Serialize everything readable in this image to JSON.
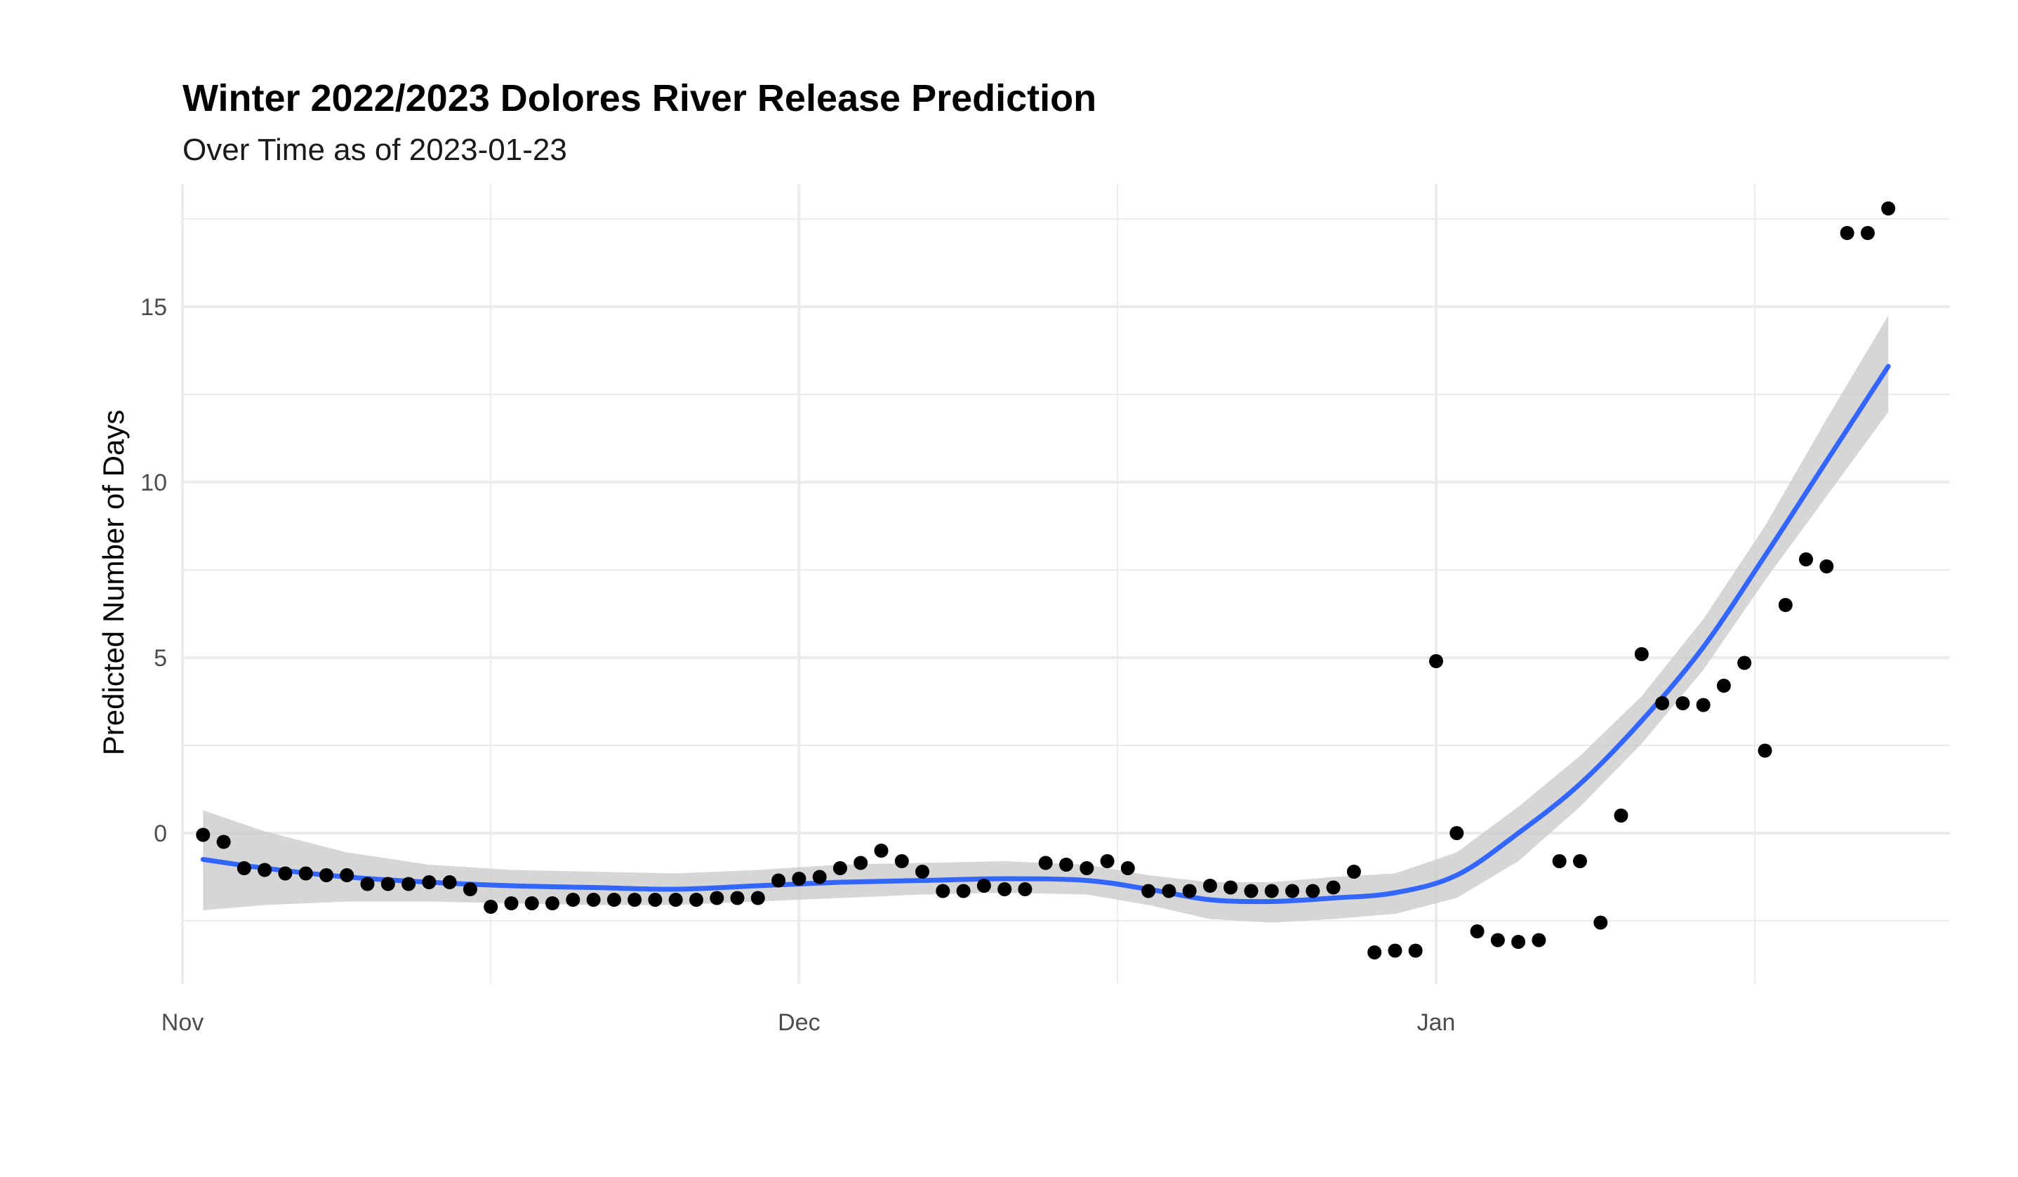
{
  "chart_data": {
    "type": "scatter",
    "title": "Winter 2022/2023 Dolores River Release Prediction",
    "subtitle": "Over Time as of 2023-01-23",
    "xlabel": "",
    "ylabel": "Predicted Number of Days",
    "xlim": [
      "2022-11-01",
      "2023-01-26"
    ],
    "ylim": [
      -4.3,
      18.5
    ],
    "x_ticks": [
      {
        "date": "2022-11-01",
        "label": "Nov"
      },
      {
        "date": "2022-12-01",
        "label": "Dec"
      },
      {
        "date": "2023-01-01",
        "label": "Jan"
      }
    ],
    "y_ticks": [
      0,
      5,
      10,
      15
    ],
    "grid": true,
    "legend": "none",
    "colors": {
      "points": "#000000",
      "trend": "#3366ff",
      "band": "#c8c8c8",
      "grid": "#ebebeb"
    },
    "series": [
      {
        "kind": "points",
        "points": [
          [
            "2022-11-02",
            -0.05
          ],
          [
            "2022-11-03",
            -0.25
          ],
          [
            "2022-11-04",
            -1.0
          ],
          [
            "2022-11-05",
            -1.05
          ],
          [
            "2022-11-06",
            -1.15
          ],
          [
            "2022-11-07",
            -1.15
          ],
          [
            "2022-11-08",
            -1.2
          ],
          [
            "2022-11-09",
            -1.2
          ],
          [
            "2022-11-10",
            -1.45
          ],
          [
            "2022-11-11",
            -1.45
          ],
          [
            "2022-11-12",
            -1.45
          ],
          [
            "2022-11-13",
            -1.4
          ],
          [
            "2022-11-14",
            -1.4
          ],
          [
            "2022-11-15",
            -1.6
          ],
          [
            "2022-11-16",
            -2.1
          ],
          [
            "2022-11-17",
            -2.0
          ],
          [
            "2022-11-18",
            -2.0
          ],
          [
            "2022-11-19",
            -2.0
          ],
          [
            "2022-11-20",
            -1.9
          ],
          [
            "2022-11-21",
            -1.9
          ],
          [
            "2022-11-22",
            -1.9
          ],
          [
            "2022-11-23",
            -1.9
          ],
          [
            "2022-11-24",
            -1.9
          ],
          [
            "2022-11-25",
            -1.9
          ],
          [
            "2022-11-26",
            -1.9
          ],
          [
            "2022-11-27",
            -1.85
          ],
          [
            "2022-11-28",
            -1.85
          ],
          [
            "2022-11-29",
            -1.85
          ],
          [
            "2022-11-30",
            -1.35
          ],
          [
            "2022-12-01",
            -1.3
          ],
          [
            "2022-12-02",
            -1.25
          ],
          [
            "2022-12-03",
            -1.0
          ],
          [
            "2022-12-04",
            -0.85
          ],
          [
            "2022-12-05",
            -0.5
          ],
          [
            "2022-12-06",
            -0.8
          ],
          [
            "2022-12-07",
            -1.1
          ],
          [
            "2022-12-08",
            -1.65
          ],
          [
            "2022-12-09",
            -1.65
          ],
          [
            "2022-12-10",
            -1.5
          ],
          [
            "2022-12-11",
            -1.6
          ],
          [
            "2022-12-12",
            -1.6
          ],
          [
            "2022-12-13",
            -0.85
          ],
          [
            "2022-12-14",
            -0.9
          ],
          [
            "2022-12-15",
            -1.0
          ],
          [
            "2022-12-16",
            -0.8
          ],
          [
            "2022-12-17",
            -1.0
          ],
          [
            "2022-12-18",
            -1.65
          ],
          [
            "2022-12-19",
            -1.65
          ],
          [
            "2022-12-20",
            -1.65
          ],
          [
            "2022-12-21",
            -1.5
          ],
          [
            "2022-12-22",
            -1.55
          ],
          [
            "2022-12-23",
            -1.65
          ],
          [
            "2022-12-24",
            -1.65
          ],
          [
            "2022-12-25",
            -1.65
          ],
          [
            "2022-12-26",
            -1.65
          ],
          [
            "2022-12-27",
            -1.55
          ],
          [
            "2022-12-28",
            -1.1
          ],
          [
            "2022-12-29",
            -3.4
          ],
          [
            "2022-12-30",
            -3.35
          ],
          [
            "2022-12-31",
            -3.35
          ],
          [
            "2023-01-01",
            4.9
          ],
          [
            "2023-01-02",
            0.0
          ],
          [
            "2023-01-03",
            -2.8
          ],
          [
            "2023-01-04",
            -3.05
          ],
          [
            "2023-01-05",
            -3.1
          ],
          [
            "2023-01-06",
            -3.05
          ],
          [
            "2023-01-07",
            -0.8
          ],
          [
            "2023-01-08",
            -0.8
          ],
          [
            "2023-01-09",
            -2.55
          ],
          [
            "2023-01-10",
            0.5
          ],
          [
            "2023-01-11",
            5.1
          ],
          [
            "2023-01-12",
            3.7
          ],
          [
            "2023-01-13",
            3.7
          ],
          [
            "2023-01-14",
            3.65
          ],
          [
            "2023-01-15",
            4.2
          ],
          [
            "2023-01-16",
            4.85
          ],
          [
            "2023-01-17",
            2.35
          ],
          [
            "2023-01-18",
            6.5
          ],
          [
            "2023-01-19",
            7.8
          ],
          [
            "2023-01-20",
            7.6
          ],
          [
            "2023-01-21",
            17.1
          ],
          [
            "2023-01-22",
            17.1
          ],
          [
            "2023-01-23",
            17.8
          ]
        ]
      },
      {
        "kind": "smooth",
        "points": [
          [
            "2022-11-02",
            -0.75,
            -2.2,
            0.65
          ],
          [
            "2022-11-05",
            -1.0,
            -2.05,
            0.05
          ],
          [
            "2022-11-09",
            -1.25,
            -1.95,
            -0.55
          ],
          [
            "2022-11-13",
            -1.4,
            -1.95,
            -0.9
          ],
          [
            "2022-11-17",
            -1.5,
            -2.0,
            -1.05
          ],
          [
            "2022-11-21",
            -1.55,
            -2.05,
            -1.1
          ],
          [
            "2022-11-25",
            -1.6,
            -2.05,
            -1.15
          ],
          [
            "2022-11-29",
            -1.5,
            -1.95,
            -1.05
          ],
          [
            "2022-12-03",
            -1.4,
            -1.85,
            -0.9
          ],
          [
            "2022-12-07",
            -1.35,
            -1.75,
            -0.85
          ],
          [
            "2022-12-11",
            -1.3,
            -1.7,
            -0.8
          ],
          [
            "2022-12-15",
            -1.35,
            -1.75,
            -0.9
          ],
          [
            "2022-12-18",
            -1.6,
            -2.05,
            -1.2
          ],
          [
            "2022-12-21",
            -1.9,
            -2.45,
            -1.4
          ],
          [
            "2022-12-24",
            -1.95,
            -2.55,
            -1.4
          ],
          [
            "2022-12-27",
            -1.85,
            -2.45,
            -1.25
          ],
          [
            "2022-12-30",
            -1.7,
            -2.3,
            -1.15
          ],
          [
            "2023-01-02",
            -1.2,
            -1.85,
            -0.55
          ],
          [
            "2023-01-05",
            0.0,
            -0.8,
            0.75
          ],
          [
            "2023-01-08",
            1.4,
            0.75,
            2.2
          ],
          [
            "2023-01-11",
            3.2,
            2.55,
            3.9
          ],
          [
            "2023-01-14",
            5.3,
            4.65,
            6.1
          ],
          [
            "2023-01-17",
            7.9,
            7.2,
            8.75
          ],
          [
            "2023-01-20",
            10.6,
            9.6,
            11.8
          ],
          [
            "2023-01-23",
            13.3,
            12.0,
            14.75
          ]
        ]
      }
    ]
  }
}
